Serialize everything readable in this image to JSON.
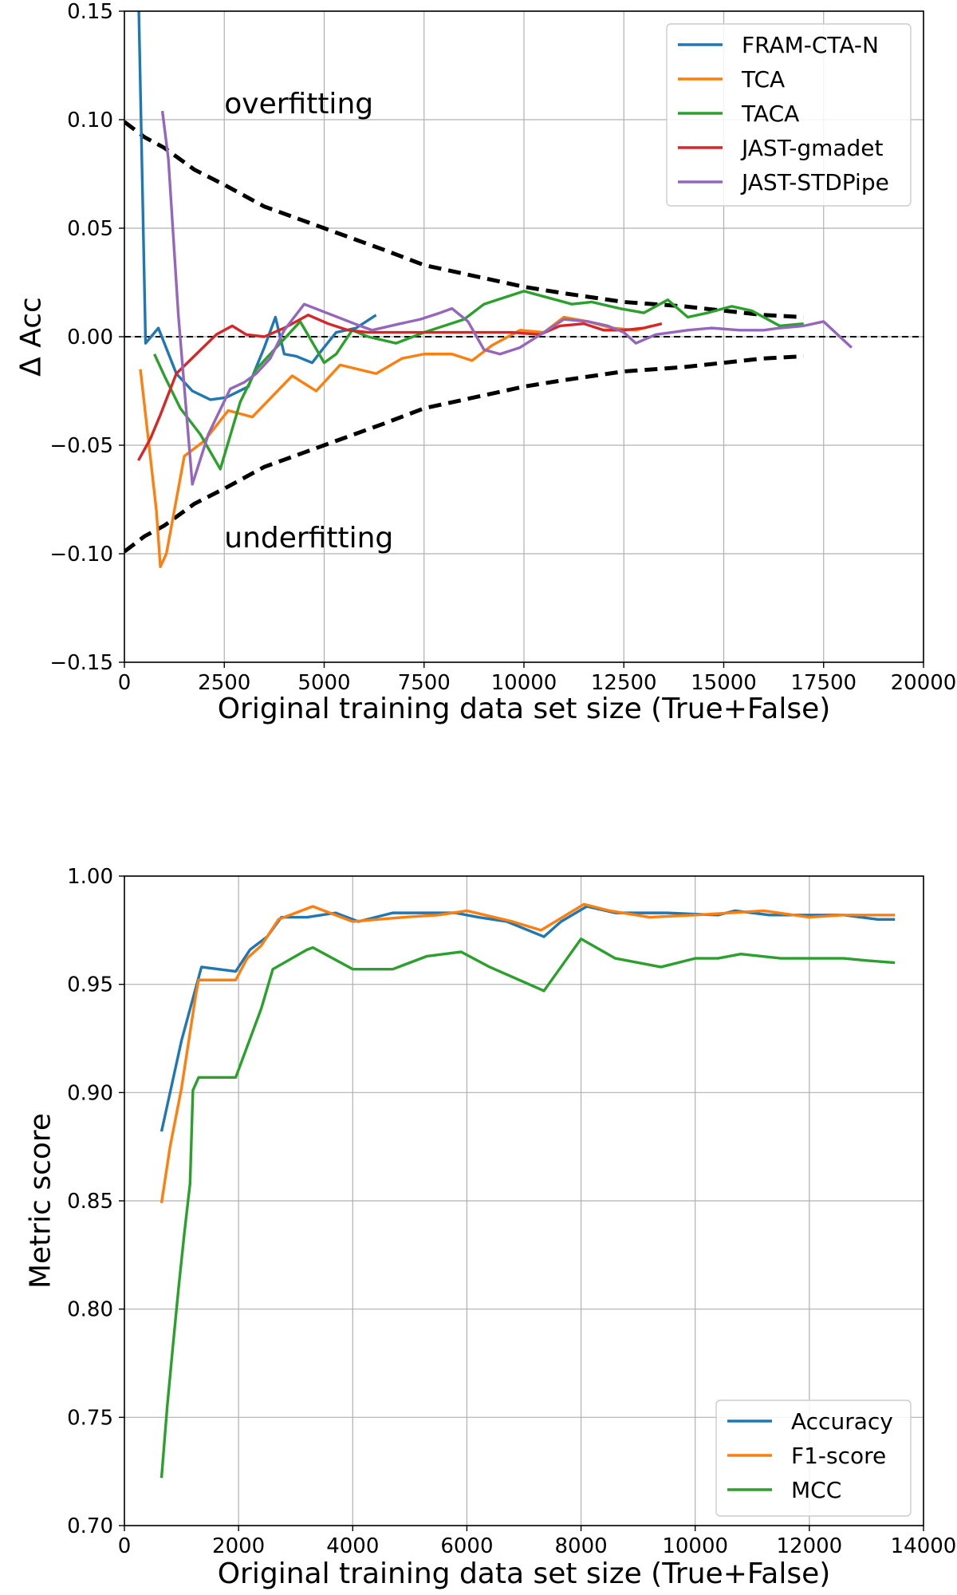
{
  "chart_data": [
    {
      "type": "line",
      "title": "",
      "xlabel": "Original training data set size (True+False)",
      "ylabel": "Δ Acc",
      "xlim": [
        0,
        20000
      ],
      "ylim": [
        -0.15,
        0.15
      ],
      "xticks": [
        0,
        2500,
        5000,
        7500,
        10000,
        12500,
        15000,
        17500,
        20000
      ],
      "xtick_labels": [
        "0",
        "2500",
        "5000",
        "7500",
        "10000",
        "12500",
        "15000",
        "17500",
        "20000"
      ],
      "yticks": [
        -0.15,
        -0.1,
        -0.05,
        0.0,
        0.05,
        0.1,
        0.15
      ],
      "ytick_labels": [
        "−0.15",
        "−0.10",
        "−0.05",
        "0.00",
        "0.05",
        "0.10",
        "0.15"
      ],
      "grid": true,
      "legend_position": "top-right",
      "annotations": [
        {
          "text": "overfitting",
          "x": 2500,
          "y": 0.103
        },
        {
          "text": "underfitting",
          "x": 2500,
          "y": -0.097
        }
      ],
      "reference_lines": {
        "zero_line": 0.0,
        "upper_bound": {
          "x": [
            0,
            500,
            1000,
            1750,
            2500,
            3500,
            5000,
            6500,
            7500,
            9000,
            10000,
            11000,
            12500,
            14000,
            15000,
            16000,
            17000
          ],
          "y": [
            0.099,
            0.092,
            0.087,
            0.077,
            0.07,
            0.06,
            0.05,
            0.04,
            0.033,
            0.027,
            0.023,
            0.02,
            0.016,
            0.014,
            0.012,
            0.01,
            0.009
          ]
        },
        "lower_bound": {
          "x": [
            0,
            500,
            1000,
            1750,
            2500,
            3500,
            5000,
            6500,
            7500,
            9000,
            10000,
            11000,
            12500,
            14000,
            15000,
            16000,
            17000
          ],
          "y": [
            -0.099,
            -0.092,
            -0.087,
            -0.077,
            -0.07,
            -0.06,
            -0.05,
            -0.04,
            -0.033,
            -0.027,
            -0.023,
            -0.02,
            -0.016,
            -0.014,
            -0.012,
            -0.01,
            -0.009
          ]
        }
      },
      "series": [
        {
          "name": "FRAM-CTA-N",
          "color": "#1f77b4",
          "x": [
            350,
            530,
            850,
            1300,
            1700,
            2150,
            2550,
            3100,
            3500,
            3780,
            4000,
            4300,
            4700,
            4950,
            5300,
            5800,
            6300
          ],
          "y": [
            0.16,
            -0.003,
            0.004,
            -0.017,
            -0.025,
            -0.029,
            -0.028,
            -0.023,
            -0.005,
            0.009,
            -0.008,
            -0.009,
            -0.012,
            -0.006,
            0.002,
            0.004,
            0.01
          ]
        },
        {
          "name": "TCA",
          "color": "#ff7f0e",
          "x": [
            400,
            800,
            900,
            1050,
            1500,
            2000,
            2600,
            3200,
            4200,
            4800,
            5400,
            6300,
            6950,
            7500,
            8200,
            8700,
            9200,
            9900,
            10500,
            11000,
            11600,
            12200,
            12800,
            13200
          ],
          "y": [
            -0.015,
            -0.08,
            -0.106,
            -0.1,
            -0.055,
            -0.048,
            -0.034,
            -0.037,
            -0.018,
            -0.025,
            -0.013,
            -0.017,
            -0.01,
            -0.008,
            -0.008,
            -0.011,
            -0.004,
            0.003,
            0.002,
            0.009,
            0.007,
            0.004,
            0.003,
            0.005
          ]
        },
        {
          "name": "TACA",
          "color": "#2ca02c",
          "x": [
            750,
            1000,
            1400,
            1900,
            2400,
            2900,
            3300,
            3750,
            4400,
            5000,
            5300,
            5700,
            6100,
            6800,
            7500,
            8500,
            9000,
            10000,
            10400,
            11200,
            11700,
            12400,
            13000,
            13600,
            14100,
            14600,
            15200,
            15700,
            16400,
            17000
          ],
          "y": [
            -0.008,
            -0.018,
            -0.033,
            -0.045,
            -0.061,
            -0.03,
            -0.015,
            -0.006,
            0.007,
            -0.012,
            -0.008,
            0.003,
            0.0,
            -0.003,
            0.002,
            0.008,
            0.015,
            0.021,
            0.019,
            0.015,
            0.016,
            0.013,
            0.011,
            0.017,
            0.009,
            0.011,
            0.014,
            0.012,
            0.005,
            0.006
          ]
        },
        {
          "name": "JAST-gmadet",
          "color": "#d62728",
          "x": [
            350,
            650,
            900,
            1300,
            1800,
            2300,
            2700,
            3050,
            3500,
            4000,
            4600,
            5100,
            5600,
            6100,
            6600,
            7200,
            7800,
            8300,
            9000,
            9700,
            10400,
            10900,
            11500,
            12000,
            12500,
            13000,
            13450
          ],
          "y": [
            -0.057,
            -0.047,
            -0.036,
            -0.017,
            -0.008,
            0.001,
            0.005,
            0.001,
            0.0,
            0.004,
            0.01,
            0.006,
            0.003,
            0.002,
            0.002,
            0.002,
            0.002,
            0.002,
            0.002,
            0.002,
            0.001,
            0.005,
            0.006,
            0.003,
            0.003,
            0.004,
            0.006
          ]
        },
        {
          "name": "JAST-STDPipe",
          "color": "#9467bd",
          "x": [
            950,
            1100,
            1350,
            1700,
            2100,
            2650,
            3000,
            3300,
            3650,
            4000,
            4500,
            5200,
            5900,
            6200,
            6900,
            7400,
            7900,
            8200,
            8600,
            9000,
            9400,
            9900,
            10500,
            11000,
            11600,
            12100,
            12500,
            12800,
            13300,
            14100,
            14700,
            15400,
            16000,
            16400,
            17000,
            17500,
            18200
          ],
          "y": [
            0.104,
            0.082,
            0.01,
            -0.068,
            -0.045,
            -0.024,
            -0.021,
            -0.017,
            -0.01,
            0.003,
            0.015,
            0.01,
            0.005,
            0.003,
            0.006,
            0.008,
            0.011,
            0.013,
            0.007,
            -0.006,
            -0.008,
            -0.005,
            0.002,
            0.008,
            0.007,
            0.005,
            0.002,
            -0.003,
            0.001,
            0.003,
            0.004,
            0.003,
            0.003,
            0.004,
            0.005,
            0.007,
            -0.005
          ]
        }
      ]
    },
    {
      "type": "line",
      "title": "",
      "xlabel": "Original training data set size (True+False)",
      "ylabel": "Metric score",
      "xlim": [
        0,
        14000
      ],
      "ylim": [
        0.7,
        1.0
      ],
      "xticks": [
        0,
        2000,
        4000,
        6000,
        8000,
        10000,
        12000,
        14000
      ],
      "xtick_labels": [
        "0",
        "2000",
        "4000",
        "6000",
        "8000",
        "10000",
        "12000",
        "14000"
      ],
      "yticks": [
        0.7,
        0.75,
        0.8,
        0.85,
        0.9,
        0.95,
        1.0
      ],
      "ytick_labels": [
        "0.70",
        "0.75",
        "0.80",
        "0.85",
        "0.90",
        "0.95",
        "1.00"
      ],
      "grid": true,
      "legend_position": "bottom-right",
      "series": [
        {
          "name": "Accuracy",
          "color": "#1f77b4",
          "x": [
            650,
            1000,
            1350,
            1950,
            2200,
            2500,
            2750,
            3200,
            3700,
            4100,
            4700,
            5800,
            6200,
            6700,
            7350,
            7650,
            8100,
            8600,
            9500,
            10400,
            10700,
            11300,
            12100,
            12600,
            13200,
            13500
          ],
          "y": [
            0.882,
            0.924,
            0.958,
            0.956,
            0.966,
            0.972,
            0.981,
            0.981,
            0.983,
            0.979,
            0.983,
            0.983,
            0.981,
            0.979,
            0.972,
            0.979,
            0.986,
            0.983,
            0.983,
            0.982,
            0.984,
            0.982,
            0.982,
            0.982,
            0.98,
            0.98
          ]
        },
        {
          "name": "F1-score",
          "color": "#ff7f0e",
          "x": [
            650,
            800,
            1000,
            1250,
            1300,
            1950,
            2150,
            2400,
            2700,
            3300,
            4000,
            4900,
            5500,
            6000,
            6800,
            7300,
            8050,
            8500,
            9200,
            10000,
            11200,
            12000,
            12600,
            13500
          ],
          "y": [
            0.849,
            0.875,
            0.902,
            0.945,
            0.952,
            0.952,
            0.962,
            0.968,
            0.98,
            0.986,
            0.979,
            0.981,
            0.982,
            0.984,
            0.979,
            0.975,
            0.987,
            0.984,
            0.981,
            0.982,
            0.984,
            0.981,
            0.982,
            0.982
          ]
        },
        {
          "name": "MCC",
          "color": "#2ca02c",
          "x": [
            650,
            750,
            850,
            950,
            1050,
            1150,
            1200,
            1300,
            1950,
            2400,
            2600,
            3200,
            3300,
            4000,
            4700,
            5300,
            5900,
            6400,
            7350,
            8000,
            8600,
            9400,
            10000,
            10400,
            10800,
            11500,
            12100,
            12600,
            13000,
            13500
          ],
          "y": [
            0.722,
            0.755,
            0.783,
            0.81,
            0.835,
            0.858,
            0.901,
            0.907,
            0.907,
            0.939,
            0.957,
            0.966,
            0.967,
            0.957,
            0.957,
            0.963,
            0.965,
            0.958,
            0.947,
            0.971,
            0.962,
            0.958,
            0.962,
            0.962,
            0.964,
            0.962,
            0.962,
            0.962,
            0.961,
            0.96
          ]
        }
      ]
    }
  ]
}
